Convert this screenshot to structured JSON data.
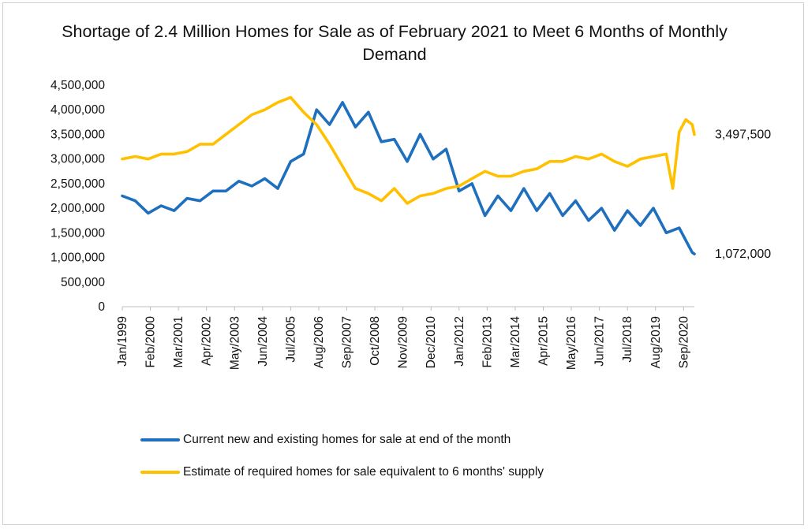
{
  "chart_data": {
    "type": "line",
    "title": "Shortage of 2.4 Million Homes for Sale as of February 2021 to Meet 6 Months of Monthly Demand",
    "ylim": [
      0,
      4500000
    ],
    "y_ticks": [
      "4,500,000",
      "4,000,000",
      "3,500,000",
      "3,000,000",
      "2,500,000",
      "2,000,000",
      "1,500,000",
      "1,000,000",
      "500,000",
      "0"
    ],
    "x_tick_labels": [
      "Jan/1999",
      "Feb/2000",
      "Mar/2001",
      "Apr/2002",
      "May/2003",
      "Jun/2004",
      "Jul/2005",
      "Aug/2006",
      "Sep/2007",
      "Oct/2008",
      "Nov/2009",
      "Dec/2010",
      "Jan/2012",
      "Feb/2013",
      "Mar/2014",
      "Apr/2015",
      "May/2016",
      "Jun/2017",
      "Jul/2018",
      "Aug/2019",
      "Sep/2020"
    ],
    "x_start": "1999-01",
    "x_end": "2021-02",
    "grid": false,
    "legend_position": "bottom",
    "series": [
      {
        "name": "Current new and existing homes for sale at end of the month",
        "color": "#1f6fbf",
        "x": [
          "1999-01",
          "1999-07",
          "2000-01",
          "2000-07",
          "2001-01",
          "2001-07",
          "2002-01",
          "2002-07",
          "2003-01",
          "2003-07",
          "2004-01",
          "2004-07",
          "2005-01",
          "2005-07",
          "2006-01",
          "2006-07",
          "2007-01",
          "2007-07",
          "2008-01",
          "2008-07",
          "2009-01",
          "2009-07",
          "2010-01",
          "2010-07",
          "2011-01",
          "2011-07",
          "2012-01",
          "2012-07",
          "2013-01",
          "2013-07",
          "2014-01",
          "2014-07",
          "2015-01",
          "2015-07",
          "2016-01",
          "2016-07",
          "2017-01",
          "2017-07",
          "2018-01",
          "2018-07",
          "2019-01",
          "2019-07",
          "2020-01",
          "2020-07",
          "2021-01",
          "2021-02"
        ],
        "values": [
          2250000,
          2150000,
          1900000,
          2050000,
          1950000,
          2200000,
          2150000,
          2350000,
          2350000,
          2550000,
          2450000,
          2600000,
          2400000,
          2950000,
          3100000,
          4000000,
          3700000,
          4150000,
          3650000,
          3950000,
          3350000,
          3400000,
          2950000,
          3500000,
          3000000,
          3200000,
          2350000,
          2500000,
          1850000,
          2250000,
          1950000,
          2400000,
          1950000,
          2300000,
          1850000,
          2150000,
          1750000,
          2000000,
          1550000,
          1950000,
          1650000,
          2000000,
          1500000,
          1600000,
          1100000,
          1072000
        ]
      },
      {
        "name": "Estimate of required homes for sale equivalent to 6 months' supply",
        "color": "#ffc000",
        "x": [
          "1999-01",
          "1999-07",
          "2000-01",
          "2000-07",
          "2001-01",
          "2001-07",
          "2002-01",
          "2002-07",
          "2003-01",
          "2003-07",
          "2004-01",
          "2004-07",
          "2005-01",
          "2005-07",
          "2006-01",
          "2006-07",
          "2007-01",
          "2007-07",
          "2008-01",
          "2008-07",
          "2009-01",
          "2009-07",
          "2010-01",
          "2010-07",
          "2011-01",
          "2011-07",
          "2012-01",
          "2012-07",
          "2013-01",
          "2013-07",
          "2014-01",
          "2014-07",
          "2015-01",
          "2015-07",
          "2016-01",
          "2016-07",
          "2017-01",
          "2017-07",
          "2018-01",
          "2018-07",
          "2019-01",
          "2019-07",
          "2020-01",
          "2020-04",
          "2020-07",
          "2020-10",
          "2021-01",
          "2021-02"
        ],
        "values": [
          3000000,
          3050000,
          3000000,
          3100000,
          3100000,
          3150000,
          3300000,
          3300000,
          3500000,
          3700000,
          3900000,
          4000000,
          4150000,
          4250000,
          3950000,
          3700000,
          3300000,
          2850000,
          2400000,
          2300000,
          2150000,
          2400000,
          2100000,
          2250000,
          2300000,
          2400000,
          2450000,
          2600000,
          2750000,
          2650000,
          2650000,
          2750000,
          2800000,
          2950000,
          2950000,
          3050000,
          3000000,
          3100000,
          2950000,
          2850000,
          3000000,
          3050000,
          3100000,
          2400000,
          3550000,
          3800000,
          3700000,
          3497500
        ]
      }
    ],
    "annotations": [
      {
        "text": "3,497,500",
        "series": 1,
        "value": 3497500
      },
      {
        "text": "1,072,000",
        "series": 0,
        "value": 1072000
      }
    ]
  }
}
